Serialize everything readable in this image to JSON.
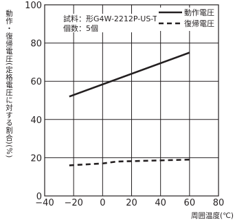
{
  "chart_data": {
    "type": "line",
    "xlabel": "周囲温度(℃)",
    "ylabel": "動作・復帰電圧(定格電圧に対する割合)(%)",
    "xlim": [
      -40,
      80
    ],
    "ylim": [
      0,
      100
    ],
    "x_ticks": [
      "−40",
      "−20",
      "0",
      "20",
      "40",
      "60",
      "80"
    ],
    "y_ticks": [
      "0",
      "20",
      "40",
      "60",
      "80",
      "100"
    ],
    "grid": true,
    "legend_position": "top-right",
    "annotations": [
      "試料：形G4W-2212P-US-TV5",
      "個数：5個"
    ],
    "series": [
      {
        "name": "動作電圧",
        "style": "solid",
        "color": "#231f20",
        "x": [
          -23,
          60
        ],
        "y": [
          52,
          75
        ]
      },
      {
        "name": "復帰電圧",
        "style": "dashed",
        "color": "#231f20",
        "x": [
          -23,
          0,
          10,
          60
        ],
        "y": [
          16,
          17,
          18,
          19
        ]
      }
    ]
  }
}
